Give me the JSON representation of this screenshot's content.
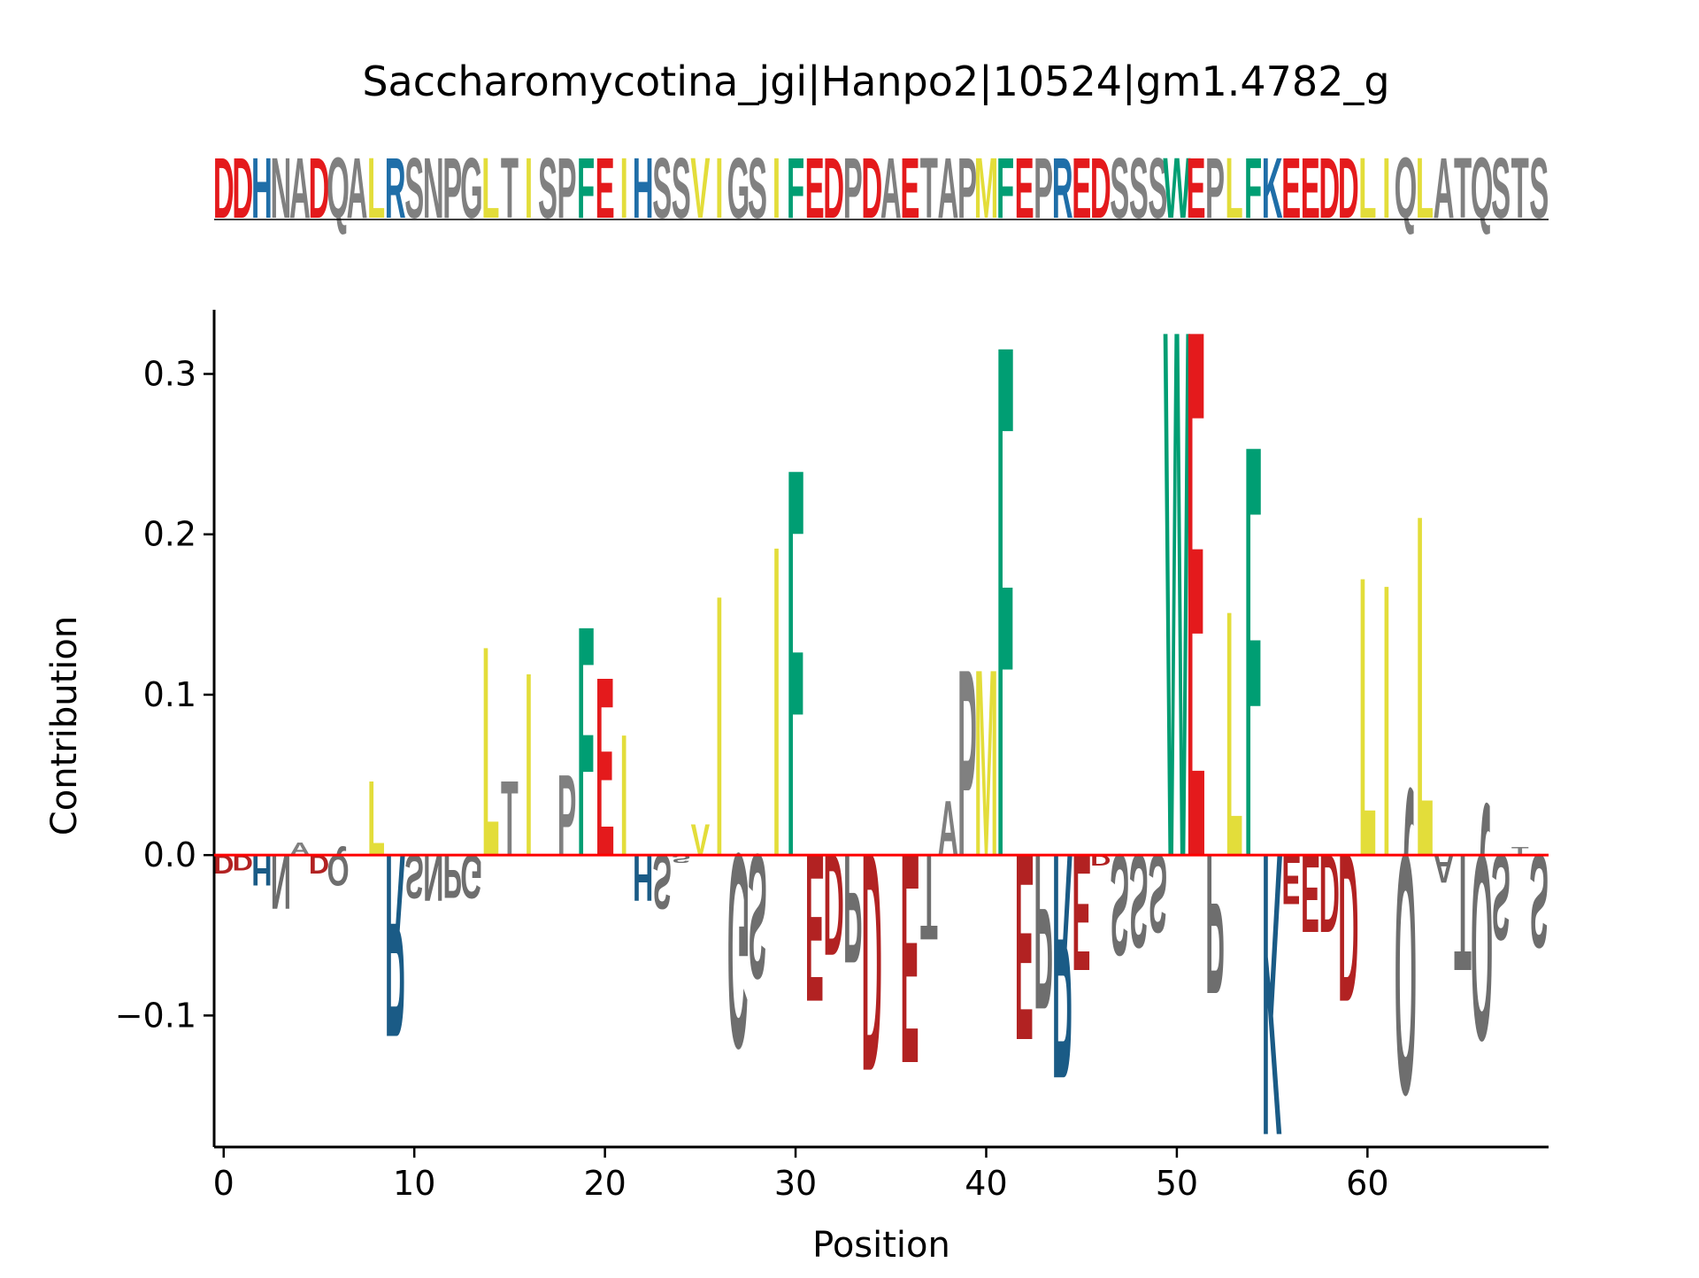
{
  "chart_data": {
    "type": "sequence-logo",
    "title": "Saccharomycotina_jgi|Hanpo2|10524|gm1.4782_g",
    "sequence": "DDHNADQALRSNPGLTISPFEIHSSVIGSIFEDPDAETAPMFEPREDSSSWEPLFKEEDDLIQLATQSTS",
    "xlabel": "Position",
    "ylabel": "Contribution",
    "xlim": [
      -0.5,
      69.5
    ],
    "ylim": [
      -0.182,
      0.34
    ],
    "xticks": [
      0,
      10,
      20,
      30,
      40,
      50,
      60
    ],
    "xtick_labels": [
      "0",
      "10",
      "20",
      "30",
      "40",
      "50",
      "60"
    ],
    "yticks": [
      -0.1,
      0.0,
      0.1,
      0.2,
      0.3
    ],
    "ytick_labels": [
      "−0.1",
      "0.0",
      "0.1",
      "0.2",
      "0.3"
    ],
    "baseline": 0.0,
    "contributions": [
      -0.012,
      -0.01,
      -0.02,
      -0.035,
      0.008,
      -0.012,
      -0.02,
      0.0,
      0.048,
      -0.118,
      -0.028,
      -0.03,
      -0.028,
      -0.028,
      0.135,
      0.048,
      0.118,
      0.0,
      0.052,
      0.148,
      0.115,
      0.078,
      -0.03,
      -0.035,
      -0.005,
      0.02,
      0.168,
      -0.125,
      -0.08,
      0.2,
      0.25,
      -0.095,
      -0.065,
      -0.07,
      -0.14,
      0.0,
      -0.135,
      -0.055,
      0.035,
      0.12,
      0.12,
      0.33,
      -0.12,
      -0.1,
      -0.145,
      -0.075,
      -0.007,
      -0.065,
      -0.06,
      -0.05,
      0.34,
      0.34,
      -0.09,
      0.158,
      0.265,
      -0.182,
      -0.032,
      -0.05,
      -0.05,
      -0.095,
      0.18,
      0.175,
      -0.155,
      0.22,
      -0.018,
      -0.075,
      -0.12,
      -0.055,
      0.005,
      -0.06
    ],
    "colors": {
      "acidic_top": "#e41a1c",
      "acidic_neg": "#b22222",
      "basic": "#1f6ea8",
      "basic_neg": "#1a5b86",
      "hydrophobic": "#e3dd3a",
      "aromatic": "#009e73",
      "neutral": "#808080",
      "neutral_neg": "#6e6e6e",
      "baseline": "#ff0000",
      "axis": "#000000"
    }
  }
}
